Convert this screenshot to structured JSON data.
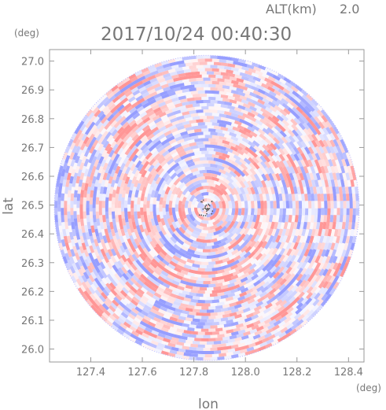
{
  "header": {
    "altitude_label": "ALT(km)",
    "altitude_value": "2.0",
    "timestamp": "2017/10/24 00:40:30"
  },
  "chart_data": {
    "type": "heatmap",
    "projection": "polar radar scan (PPI) on lon/lat grid",
    "xlabel": "lon",
    "ylabel": "lat",
    "x_unit": "(deg)",
    "y_unit": "(deg)",
    "xlim": [
      127.24,
      128.46
    ],
    "ylim": [
      25.955,
      27.04
    ],
    "xticks": [
      "127.4",
      "127.6",
      "127.8",
      "128.0",
      "128.2",
      "128.4"
    ],
    "yticks": [
      "26.0",
      "26.1",
      "26.2",
      "26.3",
      "26.4",
      "26.5",
      "26.6",
      "26.7",
      "26.8",
      "26.9",
      "27.0"
    ],
    "center": {
      "lon": 127.85,
      "lat": 26.49
    },
    "radius_deg_lat": 0.53,
    "colormap": {
      "positive": "#ff9a9a",
      "neutral": "#ffffff",
      "negative": "#9aa0ff"
    },
    "grid": false
  }
}
